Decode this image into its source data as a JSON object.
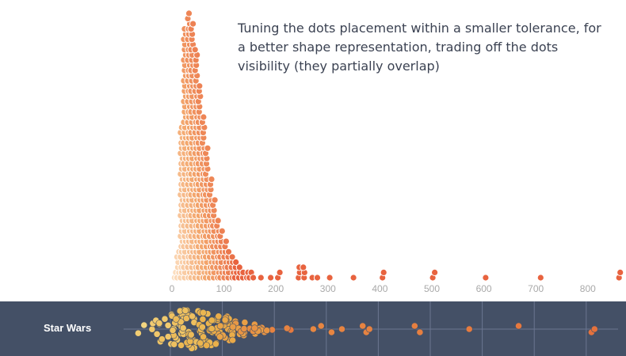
{
  "chart_data": [
    {
      "type": "scatter",
      "subtype": "beeswarm-dot-histogram",
      "title": "",
      "annotation": "Tuning the dots placement within a smaller tolerance, for a better shape representation, trading off the dots visibility (they partially overlap)",
      "xlabel": "",
      "ylabel": "",
      "xlim": [
        0,
        870
      ],
      "x_ticks": [
        0,
        100,
        200,
        300,
        400,
        500,
        600,
        700,
        800
      ],
      "grid": false,
      "colors": {
        "light": "#fde4c8",
        "mid": "#f3a66c",
        "dark": "#e8633f"
      },
      "bins": [
        {
          "x": 5,
          "count": 2
        },
        {
          "x": 12,
          "count": 6
        },
        {
          "x": 18,
          "count": 30
        },
        {
          "x": 25,
          "count": 49
        },
        {
          "x": 32,
          "count": 52
        },
        {
          "x": 39,
          "count": 50
        },
        {
          "x": 46,
          "count": 45
        },
        {
          "x": 53,
          "count": 38
        },
        {
          "x": 60,
          "count": 32
        },
        {
          "x": 67,
          "count": 26
        },
        {
          "x": 74,
          "count": 20
        },
        {
          "x": 81,
          "count": 16
        },
        {
          "x": 88,
          "count": 12
        },
        {
          "x": 95,
          "count": 10
        },
        {
          "x": 102,
          "count": 8
        },
        {
          "x": 109,
          "count": 6
        },
        {
          "x": 116,
          "count": 5
        },
        {
          "x": 123,
          "count": 4
        },
        {
          "x": 130,
          "count": 3
        },
        {
          "x": 137,
          "count": 2
        },
        {
          "x": 144,
          "count": 2
        },
        {
          "x": 151,
          "count": 2
        },
        {
          "x": 158,
          "count": 1
        },
        {
          "x": 172,
          "count": 1
        },
        {
          "x": 190,
          "count": 1
        },
        {
          "x": 206,
          "count": 2
        },
        {
          "x": 245,
          "count": 3
        },
        {
          "x": 255,
          "count": 3
        },
        {
          "x": 270,
          "count": 1
        },
        {
          "x": 282,
          "count": 1
        },
        {
          "x": 305,
          "count": 1
        },
        {
          "x": 350,
          "count": 1
        },
        {
          "x": 405,
          "count": 2
        },
        {
          "x": 504,
          "count": 2
        },
        {
          "x": 605,
          "count": 1
        },
        {
          "x": 710,
          "count": 1
        },
        {
          "x": 860,
          "count": 2
        }
      ]
    },
    {
      "type": "scatter",
      "subtype": "beeswarm",
      "series_label": "Star Wars",
      "xlim": [
        0,
        870
      ],
      "colors": {
        "band": "#445066",
        "grid": "#6b7690",
        "light": "#f6df8f",
        "mid": "#eab24a",
        "dark": "#e5703d"
      },
      "grid_x": [
        0,
        100,
        200,
        300,
        400,
        500,
        600,
        700,
        800
      ],
      "cluster": {
        "start": -90,
        "end": 260,
        "peak": 40,
        "count": 150
      },
      "outliers": [
        275,
        290,
        310,
        330,
        370,
        377,
        383,
        470,
        480,
        575,
        670,
        810,
        816
      ]
    }
  ]
}
